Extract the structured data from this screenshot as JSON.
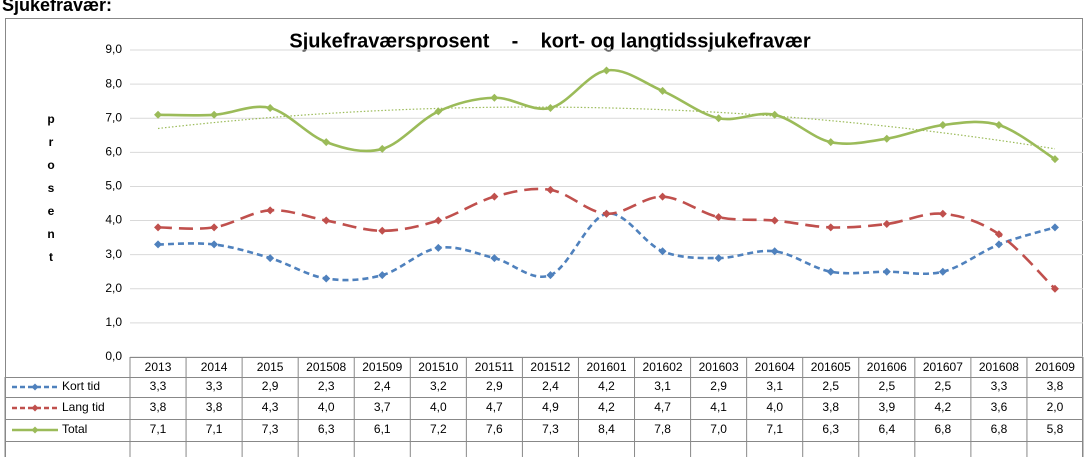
{
  "page_heading": "Sjukefravær:",
  "chart_data": {
    "type": "line",
    "title": "Sjukefraværsprosent    -    kort- og langtidssjukefravær",
    "y_label": "prosent",
    "categories": [
      "2013",
      "2014",
      "2015",
      "201508",
      "201509",
      "201510",
      "201511",
      "201512",
      "201601",
      "201602",
      "201603",
      "201604",
      "201605",
      "201606",
      "201607",
      "201608",
      "201609"
    ],
    "ylim": [
      0,
      9
    ],
    "yticks": [
      {
        "value": 0,
        "label": "0,0"
      },
      {
        "value": 1,
        "label": "1,0"
      },
      {
        "value": 2,
        "label": "2,0"
      },
      {
        "value": 3,
        "label": "3,0"
      },
      {
        "value": 4,
        "label": "4,0"
      },
      {
        "value": 5,
        "label": "5,0"
      },
      {
        "value": 6,
        "label": "6,0"
      },
      {
        "value": 7,
        "label": "7,0"
      },
      {
        "value": 8,
        "label": "8,0"
      },
      {
        "value": 9,
        "label": "9,0"
      }
    ],
    "grid": true,
    "smooth": true,
    "series": [
      {
        "name": "Kort tid",
        "color": "#4f81bd",
        "dash": "6 4",
        "values": [
          3.3,
          3.3,
          2.9,
          2.3,
          2.4,
          3.2,
          2.9,
          2.4,
          4.2,
          3.1,
          2.9,
          3.1,
          2.5,
          2.5,
          2.5,
          3.3,
          3.8
        ],
        "value_labels": [
          "3,3",
          "3,3",
          "2,9",
          "2,3",
          "2,4",
          "3,2",
          "2,9",
          "2,4",
          "4,2",
          "3,1",
          "2,9",
          "3,1",
          "2,5",
          "2,5",
          "2,5",
          "3,3",
          "3,8"
        ]
      },
      {
        "name": "Lang tid",
        "color": "#c0504d",
        "dash": "14 7",
        "values": [
          3.8,
          3.8,
          4.3,
          4.0,
          3.7,
          4.0,
          4.7,
          4.9,
          4.2,
          4.7,
          4.1,
          4.0,
          3.8,
          3.9,
          4.2,
          3.6,
          2.0
        ],
        "value_labels": [
          "3,8",
          "3,8",
          "4,3",
          "4,0",
          "3,7",
          "4,0",
          "4,7",
          "4,9",
          "4,2",
          "4,7",
          "4,1",
          "4,0",
          "3,8",
          "3,9",
          "4,2",
          "3,6",
          "2,0"
        ]
      },
      {
        "name": "Total",
        "color": "#9bbb59",
        "dash": "none",
        "trendline": true,
        "values": [
          7.1,
          7.1,
          7.3,
          6.3,
          6.1,
          7.2,
          7.6,
          7.3,
          8.4,
          7.8,
          7.0,
          7.1,
          6.3,
          6.4,
          6.8,
          6.8,
          5.8
        ],
        "value_labels": [
          "7,1",
          "7,1",
          "7,3",
          "6,3",
          "6,1",
          "7,2",
          "7,6",
          "7,3",
          "8,4",
          "7,8",
          "7,0",
          "7,1",
          "6,3",
          "6,4",
          "6,8",
          "6,8",
          "5,8"
        ]
      }
    ]
  }
}
